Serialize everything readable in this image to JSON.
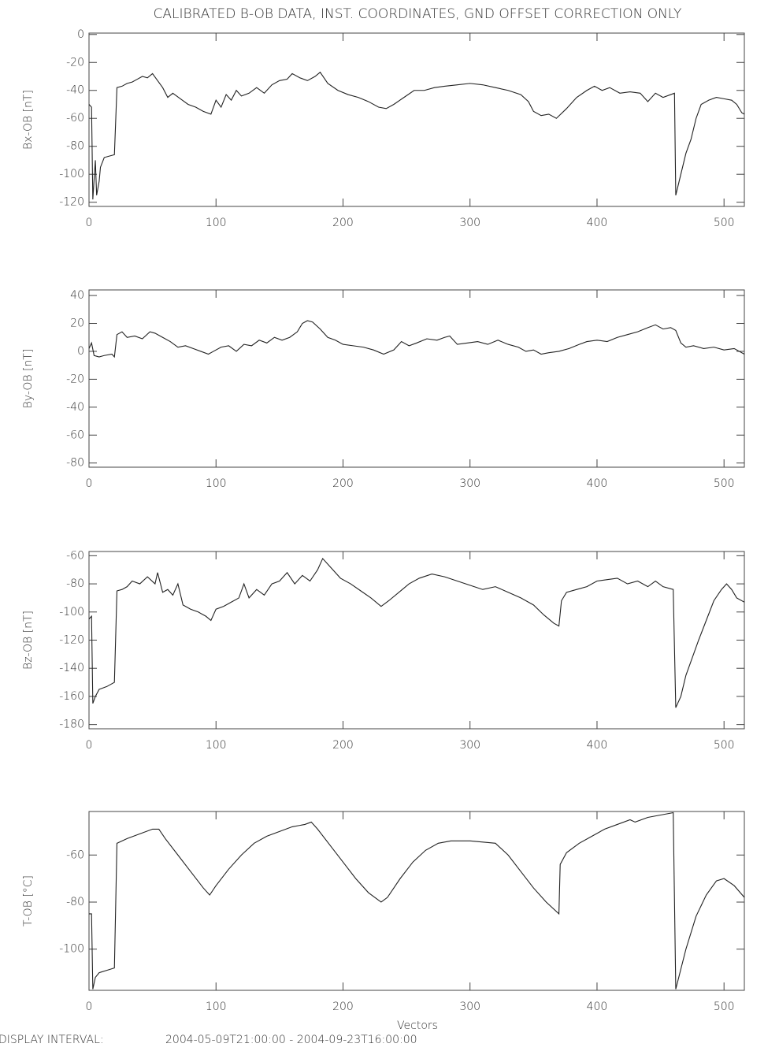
{
  "chart_data": [
    {
      "type": "line",
      "title": "CALIBRATED B-OB DATA, INST. COORDINATES, GND OFFSET CORRECTION ONLY",
      "y_label": "Bx-OB [nT]",
      "xlim": [
        0,
        516
      ],
      "xticks": [
        0,
        100,
        200,
        300,
        400,
        500
      ],
      "ylim": [
        -123,
        1
      ],
      "yticks": [
        -120,
        -100,
        -80,
        -60,
        -40,
        -20,
        0
      ],
      "series": [
        {
          "color": "#222222",
          "x": [
            0,
            2,
            3,
            5,
            6,
            8,
            9,
            12,
            16,
            20,
            22,
            26,
            30,
            34,
            38,
            42,
            46,
            50,
            54,
            58,
            62,
            66,
            72,
            78,
            84,
            90,
            96,
            100,
            104,
            108,
            112,
            116,
            120,
            126,
            132,
            138,
            144,
            150,
            156,
            160,
            166,
            172,
            178,
            182,
            188,
            196,
            204,
            212,
            220,
            228,
            234,
            240,
            248,
            256,
            264,
            272,
            280,
            290,
            300,
            310,
            320,
            330,
            340,
            346,
            350,
            356,
            362,
            368,
            376,
            384,
            392,
            398,
            404,
            410,
            418,
            426,
            434,
            440,
            446,
            452,
            458,
            461,
            462,
            466,
            470,
            474,
            478,
            482,
            488,
            494,
            500,
            506,
            510,
            514,
            516
          ],
          "values": [
            -50,
            -52,
            -118,
            -90,
            -115,
            -105,
            -95,
            -88,
            -87,
            -86,
            -38,
            -37,
            -35,
            -34,
            -32,
            -30,
            -31,
            -28,
            -33,
            -38,
            -45,
            -42,
            -46,
            -50,
            -52,
            -55,
            -57,
            -47,
            -52,
            -43,
            -47,
            -40,
            -44,
            -42,
            -38,
            -42,
            -36,
            -33,
            -32,
            -28,
            -31,
            -33,
            -30,
            -27,
            -35,
            -40,
            -43,
            -45,
            -48,
            -52,
            -53,
            -50,
            -45,
            -40,
            -40,
            -38,
            -37,
            -36,
            -35,
            -36,
            -38,
            -40,
            -43,
            -48,
            -55,
            -58,
            -57,
            -60,
            -53,
            -45,
            -40,
            -37,
            -40,
            -38,
            -42,
            -41,
            -42,
            -48,
            -42,
            -45,
            -43,
            -42,
            -115,
            -100,
            -85,
            -75,
            -60,
            -50,
            -47,
            -45,
            -46,
            -47,
            -50,
            -56,
            -57
          ]
        }
      ]
    },
    {
      "type": "line",
      "y_label": "By-OB [nT]",
      "xlim": [
        0,
        516
      ],
      "xticks": [
        0,
        100,
        200,
        300,
        400,
        500
      ],
      "ylim": [
        -83,
        44
      ],
      "yticks": [
        -80,
        -60,
        -40,
        -20,
        0,
        20,
        40
      ],
      "series": [
        {
          "color": "#222222",
          "x": [
            0,
            2,
            4,
            8,
            12,
            18,
            20,
            22,
            26,
            30,
            36,
            42,
            48,
            52,
            58,
            64,
            70,
            76,
            82,
            88,
            94,
            98,
            104,
            110,
            116,
            122,
            128,
            134,
            140,
            146,
            152,
            158,
            164,
            168,
            172,
            176,
            182,
            188,
            194,
            200,
            208,
            216,
            224,
            232,
            240,
            246,
            252,
            258,
            266,
            274,
            280,
            284,
            290,
            298,
            306,
            314,
            322,
            330,
            338,
            344,
            350,
            356,
            362,
            370,
            378,
            386,
            392,
            400,
            408,
            416,
            424,
            432,
            440,
            446,
            452,
            458,
            462,
            466,
            470,
            476,
            484,
            492,
            500,
            508,
            516
          ],
          "values": [
            2,
            6,
            -3,
            -4,
            -3,
            -2,
            -4,
            12,
            14,
            10,
            11,
            9,
            14,
            13,
            10,
            7,
            3,
            4,
            2,
            0,
            -2,
            0,
            3,
            4,
            0,
            5,
            4,
            8,
            6,
            10,
            8,
            10,
            14,
            20,
            22,
            21,
            16,
            10,
            8,
            5,
            4,
            3,
            1,
            -2,
            1,
            7,
            4,
            6,
            9,
            8,
            10,
            11,
            5,
            6,
            7,
            5,
            8,
            5,
            3,
            0,
            1,
            -2,
            -1,
            0,
            2,
            5,
            7,
            8,
            7,
            10,
            12,
            14,
            17,
            19,
            16,
            17,
            15,
            6,
            3,
            4,
            2,
            3,
            1,
            2,
            -2
          ]
        }
      ]
    },
    {
      "type": "line",
      "y_label": "Bz-OB [nT]",
      "xlim": [
        0,
        516
      ],
      "xticks": [
        0,
        100,
        200,
        300,
        400,
        500
      ],
      "ylim": [
        -183,
        -57
      ],
      "yticks": [
        -180,
        -160,
        -140,
        -120,
        -100,
        -80,
        -60
      ],
      "series": [
        {
          "color": "#222222",
          "x": [
            0,
            2,
            3,
            5,
            8,
            14,
            20,
            22,
            26,
            30,
            34,
            40,
            46,
            52,
            54,
            58,
            62,
            66,
            70,
            74,
            80,
            86,
            92,
            96,
            100,
            106,
            112,
            118,
            122,
            126,
            132,
            138,
            144,
            150,
            156,
            162,
            168,
            174,
            180,
            184,
            190,
            198,
            206,
            214,
            222,
            230,
            236,
            244,
            252,
            260,
            270,
            280,
            290,
            300,
            310,
            320,
            330,
            340,
            350,
            358,
            366,
            370,
            372,
            376,
            384,
            392,
            400,
            408,
            416,
            424,
            432,
            440,
            446,
            452,
            460,
            462,
            466,
            470,
            474,
            480,
            486,
            492,
            498,
            502,
            506,
            510,
            516
          ],
          "values": [
            -105,
            -103,
            -165,
            -160,
            -155,
            -153,
            -150,
            -85,
            -84,
            -82,
            -78,
            -80,
            -75,
            -80,
            -72,
            -86,
            -84,
            -88,
            -80,
            -95,
            -98,
            -100,
            -103,
            -106,
            -98,
            -96,
            -93,
            -90,
            -80,
            -90,
            -84,
            -88,
            -80,
            -78,
            -72,
            -80,
            -74,
            -78,
            -70,
            -62,
            -68,
            -76,
            -80,
            -85,
            -90,
            -96,
            -92,
            -86,
            -80,
            -76,
            -73,
            -75,
            -78,
            -81,
            -84,
            -82,
            -86,
            -90,
            -95,
            -102,
            -108,
            -110,
            -92,
            -86,
            -84,
            -82,
            -78,
            -77,
            -76,
            -80,
            -78,
            -82,
            -78,
            -82,
            -84,
            -168,
            -160,
            -145,
            -135,
            -120,
            -106,
            -92,
            -84,
            -80,
            -84,
            -90,
            -93
          ]
        }
      ]
    },
    {
      "type": "line",
      "y_label": "T-OB [°C]",
      "x_label": "Vectors",
      "xlim": [
        0,
        516
      ],
      "xticks": [
        0,
        100,
        200,
        300,
        400,
        500
      ],
      "ylim": [
        -117.5,
        -41.5
      ],
      "yticks": [
        -100,
        -80,
        -60
      ],
      "series": [
        {
          "color": "#222222",
          "x": [
            0,
            2,
            3,
            5,
            8,
            14,
            20,
            22,
            30,
            40,
            50,
            55,
            60,
            70,
            80,
            90,
            95,
            100,
            110,
            120,
            130,
            140,
            150,
            160,
            170,
            175,
            180,
            190,
            200,
            210,
            220,
            230,
            235,
            245,
            255,
            265,
            275,
            285,
            300,
            320,
            330,
            340,
            350,
            360,
            370,
            371,
            376,
            386,
            396,
            406,
            416,
            426,
            430,
            440,
            450,
            460,
            462,
            470,
            478,
            486,
            494,
            500,
            508,
            516
          ],
          "values": [
            -85,
            -85,
            -117,
            -112,
            -110,
            -109,
            -108,
            -55,
            -53,
            -51,
            -49,
            -49,
            -53,
            -60,
            -67,
            -74,
            -77,
            -73,
            -66,
            -60,
            -55,
            -52,
            -50,
            -48,
            -47,
            -46,
            -49,
            -56,
            -63,
            -70,
            -76,
            -80,
            -78,
            -70,
            -63,
            -58,
            -55,
            -54,
            -54,
            -55,
            -60,
            -67,
            -74,
            -80,
            -85,
            -64,
            -59,
            -55,
            -52,
            -49,
            -47,
            -45,
            -46,
            -44,
            -43,
            -42,
            -117,
            -100,
            -86,
            -77,
            -71,
            -70,
            -73,
            -78
          ]
        }
      ]
    }
  ],
  "footer": {
    "label": "DISPLAY INTERVAL:",
    "interval": "2004-05-09T21:00:00 - 2004-09-23T16:00:00"
  }
}
